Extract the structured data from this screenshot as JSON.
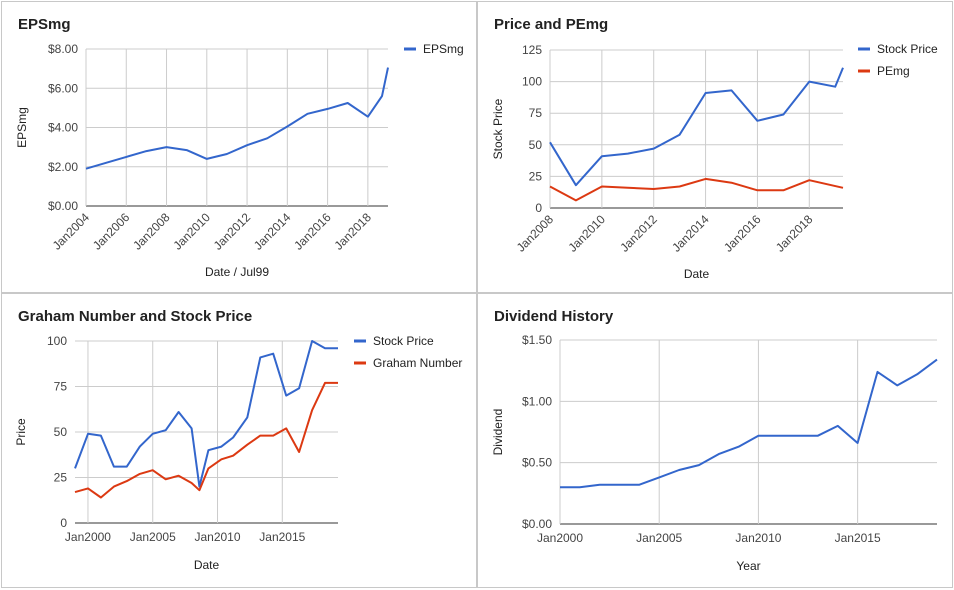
{
  "colors": {
    "blue": "#3366cc",
    "red": "#dc3912"
  },
  "chart_data": [
    {
      "type": "line",
      "title": "EPSmg",
      "xlabel": "Date / Jul99",
      "ylabel": "EPSmg",
      "xlim": [
        2004,
        2019
      ],
      "ylim": [
        0,
        8
      ],
      "y_ticks": [
        0,
        2,
        4,
        6,
        8
      ],
      "y_tick_labels": [
        "$0.00",
        "$2.00",
        "$4.00",
        "$6.00",
        "$8.00"
      ],
      "x_ticks": [
        2004,
        2006,
        2008,
        2010,
        2012,
        2014,
        2016,
        2018
      ],
      "x_tick_labels": [
        "Jan2004",
        "Jan2006",
        "Jan2008",
        "Jan2010",
        "Jan2012",
        "Jan2014",
        "Jan2016",
        "Jan2018"
      ],
      "x_tick_rotated": true,
      "legend_position": "right",
      "grid": true,
      "series": [
        {
          "name": "EPSmg",
          "color": "#3366cc",
          "x": [
            2004,
            2005,
            2006,
            2007,
            2008,
            2009,
            2010,
            2011,
            2012,
            2013,
            2014,
            2015,
            2016,
            2017,
            2018,
            2018.7,
            2019
          ],
          "y": [
            1.9,
            2.2,
            2.5,
            2.8,
            3.0,
            2.85,
            2.4,
            2.65,
            3.1,
            3.45,
            4.05,
            4.7,
            4.95,
            5.25,
            4.55,
            5.6,
            7.05
          ]
        }
      ]
    },
    {
      "type": "line",
      "title": "Price and PEmg",
      "xlabel": "Date",
      "ylabel": "Stock Price",
      "xlim": [
        2008,
        2019.3
      ],
      "ylim": [
        0,
        125
      ],
      "y_ticks": [
        0,
        25,
        50,
        75,
        100,
        125
      ],
      "y_tick_labels": [
        "0",
        "25",
        "50",
        "75",
        "100",
        "125"
      ],
      "x_ticks": [
        2008,
        2010,
        2012,
        2014,
        2016,
        2018
      ],
      "x_tick_labels": [
        "Jan2008",
        "Jan2010",
        "Jan2012",
        "Jan2014",
        "Jan2016",
        "Jan2018"
      ],
      "x_tick_rotated": true,
      "legend_position": "right",
      "grid": true,
      "series": [
        {
          "name": "Stock Price",
          "color": "#3366cc",
          "x": [
            2008,
            2009,
            2010,
            2011,
            2012,
            2013,
            2014,
            2015,
            2016,
            2017,
            2018,
            2019,
            2019.3
          ],
          "y": [
            52,
            18,
            41,
            43,
            47,
            58,
            91,
            93,
            69,
            74,
            100,
            96,
            111
          ]
        },
        {
          "name": "PEmg",
          "color": "#dc3912",
          "x": [
            2008,
            2009,
            2010,
            2011,
            2012,
            2013,
            2014,
            2015,
            2016,
            2017,
            2018,
            2019.3
          ],
          "y": [
            17,
            6,
            17,
            16,
            15,
            17,
            23,
            20,
            14,
            14,
            22,
            16
          ]
        }
      ]
    },
    {
      "type": "line",
      "title": "Graham Number and Stock Price",
      "xlabel": "Date",
      "ylabel": "Price",
      "xlim": [
        1999,
        2019.3
      ],
      "ylim": [
        0,
        100
      ],
      "y_ticks": [
        0,
        25,
        50,
        75,
        100
      ],
      "y_tick_labels": [
        "0",
        "25",
        "50",
        "75",
        "100"
      ],
      "x_ticks": [
        2000,
        2005,
        2010,
        2015
      ],
      "x_tick_labels": [
        "Jan2000",
        "Jan2005",
        "Jan2010",
        "Jan2015"
      ],
      "x_tick_rotated": false,
      "legend_position": "right",
      "grid": true,
      "series": [
        {
          "name": "Stock Price",
          "color": "#3366cc",
          "x": [
            1999,
            2000,
            2001,
            2002,
            2003,
            2004,
            2005,
            2006,
            2007,
            2008,
            2008.6,
            2009.3,
            2010.3,
            2011.2,
            2012.3,
            2013.3,
            2014.3,
            2015.3,
            2016.3,
            2017.3,
            2018.3,
            2019.3
          ],
          "y": [
            30,
            49,
            48,
            31,
            31,
            42,
            49,
            51,
            61,
            52,
            20,
            40,
            42,
            47,
            58,
            91,
            93,
            70,
            74,
            100,
            96,
            96
          ]
        },
        {
          "name": "Graham Number",
          "color": "#dc3912",
          "x": [
            1999,
            2000,
            2001,
            2002,
            2003,
            2004,
            2005,
            2006,
            2007,
            2008,
            2008.6,
            2009.3,
            2010.3,
            2011.2,
            2012.3,
            2013.3,
            2014.3,
            2015.3,
            2016.3,
            2017.3,
            2018.3,
            2019.3
          ],
          "y": [
            17,
            19,
            14,
            20,
            23,
            27,
            29,
            24,
            26,
            22,
            18,
            30,
            35,
            37,
            43,
            48,
            48,
            52,
            39,
            62,
            77,
            77
          ]
        }
      ]
    },
    {
      "type": "line",
      "title": "Dividend History",
      "xlabel": "Year",
      "ylabel": "Dividend",
      "xlim": [
        2000,
        2019
      ],
      "ylim": [
        0,
        1.5
      ],
      "y_ticks": [
        0,
        0.5,
        1.0,
        1.5
      ],
      "y_tick_labels": [
        "$0.00",
        "$0.50",
        "$1.00",
        "$1.50"
      ],
      "x_ticks": [
        2000,
        2005,
        2010,
        2015
      ],
      "x_tick_labels": [
        "Jan2000",
        "Jan2005",
        "Jan2010",
        "Jan2015"
      ],
      "x_tick_rotated": false,
      "legend_position": "none",
      "grid": true,
      "series": [
        {
          "name": "",
          "color": "#3366cc",
          "x": [
            2000,
            2001,
            2002,
            2003,
            2004,
            2005,
            2006,
            2007,
            2008,
            2009,
            2010,
            2011,
            2012,
            2013,
            2014,
            2015,
            2016,
            2017,
            2018,
            2019
          ],
          "y": [
            0.3,
            0.3,
            0.32,
            0.32,
            0.32,
            0.38,
            0.44,
            0.48,
            0.57,
            0.63,
            0.72,
            0.72,
            0.72,
            0.72,
            0.8,
            0.66,
            1.24,
            1.13,
            1.22,
            1.34
          ]
        }
      ]
    }
  ]
}
